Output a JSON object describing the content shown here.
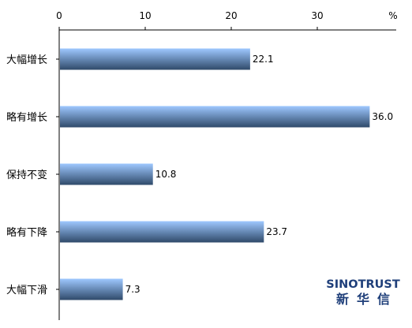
{
  "chart_data": {
    "type": "bar",
    "orientation": "horizontal",
    "categories": [
      "大幅增长",
      "略有增长",
      "保持不变",
      "略有下降",
      "大幅下滑"
    ],
    "values": [
      22.1,
      36.0,
      10.8,
      23.7,
      7.3
    ],
    "value_labels": [
      "22.1",
      "36.0",
      "10.8",
      "23.7",
      "7.3"
    ],
    "x_ticks": [
      0,
      10,
      20,
      30
    ],
    "x_unit": "%",
    "xlim": [
      0,
      39
    ],
    "grid": false,
    "x_axis_position": "top",
    "bar_color_light": "#9ec8ff",
    "bar_color_dark": "#2f4a6a"
  },
  "logo": {
    "en": "SINOTRUST",
    "zh": "新华信",
    "color": "#1f3f7a"
  }
}
